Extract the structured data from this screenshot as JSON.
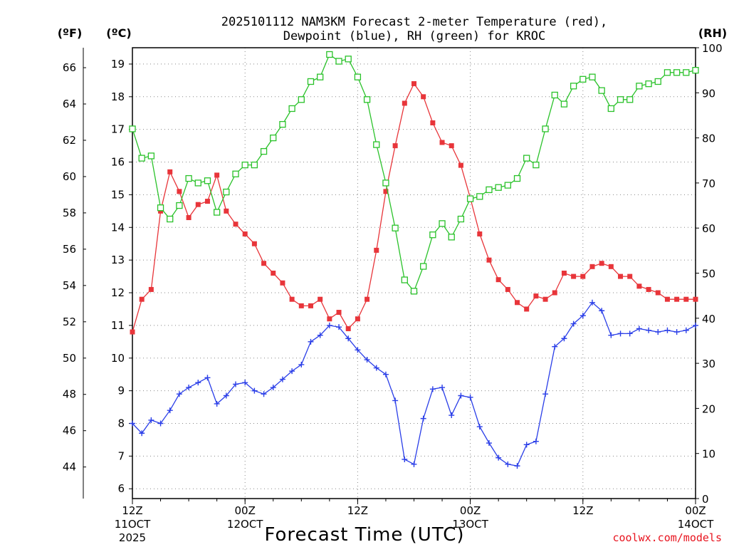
{
  "chart_data": {
    "type": "line",
    "title": "2025101112 NAM3KM Forecast 2-meter Temperature (red),",
    "subtitle": "Dewpoint (blue), RH (green) for KROC",
    "xlabel": "Forecast Time (UTC)",
    "credit": "coolwx.com/models",
    "units": {
      "f": "(ºF)",
      "c": "(ºC)",
      "rh": "(RH)"
    },
    "x_hours": [
      0,
      1,
      2,
      3,
      4,
      5,
      6,
      7,
      8,
      9,
      10,
      11,
      12,
      13,
      14,
      15,
      16,
      17,
      18,
      19,
      20,
      21,
      22,
      23,
      24,
      25,
      26,
      27,
      28,
      29,
      30,
      31,
      32,
      33,
      34,
      35,
      36,
      37,
      38,
      39,
      40,
      41,
      42,
      43,
      44,
      45,
      46,
      47,
      48,
      49,
      50,
      51,
      52,
      53,
      54,
      55,
      56,
      57,
      58,
      59,
      60
    ],
    "xlim": [
      0,
      60
    ],
    "x_ticks": [
      {
        "hour": 0,
        "lines": [
          "12Z",
          "11OCT",
          "2025"
        ]
      },
      {
        "hour": 12,
        "lines": [
          "00Z",
          "12OCT"
        ]
      },
      {
        "hour": 24,
        "lines": [
          "12Z"
        ]
      },
      {
        "hour": 36,
        "lines": [
          "00Z",
          "13OCT"
        ]
      },
      {
        "hour": 48,
        "lines": [
          "12Z"
        ]
      },
      {
        "hour": 60,
        "lines": [
          "00Z",
          "14OCT"
        ]
      }
    ],
    "y_celsius": {
      "lim": [
        5.7,
        19.5
      ],
      "ticks": [
        6,
        7,
        8,
        9,
        10,
        11,
        12,
        13,
        14,
        15,
        16,
        17,
        18,
        19
      ]
    },
    "y_fahrenheit": {
      "ticks": [
        44,
        46,
        48,
        50,
        52,
        54,
        56,
        58,
        60,
        62,
        64,
        66
      ]
    },
    "y_rh": {
      "lim": [
        0,
        100
      ],
      "ticks": [
        0,
        10,
        20,
        30,
        40,
        50,
        60,
        70,
        80,
        90,
        100
      ]
    },
    "series": [
      {
        "name": "Temperature",
        "axis": "celsius",
        "color": "#e8353a",
        "marker": "filled-square",
        "values": [
          10.8,
          11.8,
          12.1,
          14.5,
          15.7,
          15.1,
          14.3,
          14.7,
          14.8,
          15.6,
          14.5,
          14.1,
          13.8,
          13.5,
          12.9,
          12.6,
          12.3,
          11.8,
          11.6,
          11.6,
          11.8,
          11.2,
          11.4,
          10.9,
          11.2,
          11.8,
          13.3,
          15.1,
          16.5,
          17.8,
          18.4,
          18.0,
          17.2,
          16.6,
          16.5,
          15.9,
          14.9,
          13.8,
          13.0,
          12.4,
          12.1,
          11.7,
          11.5,
          11.9,
          11.8,
          12.0,
          12.6,
          12.5,
          12.5,
          12.8,
          12.9,
          12.8,
          12.5,
          12.5,
          12.2,
          12.1,
          12.0,
          11.8,
          11.8,
          11.8,
          11.8
        ]
      },
      {
        "name": "Dewpoint",
        "axis": "celsius",
        "color": "#2a3ee8",
        "marker": "plus",
        "values": [
          8.0,
          7.7,
          8.1,
          8.0,
          8.4,
          8.9,
          9.1,
          9.25,
          9.4,
          8.6,
          8.85,
          9.2,
          9.25,
          9.0,
          8.9,
          9.1,
          9.35,
          9.6,
          9.8,
          10.5,
          10.7,
          11.0,
          10.95,
          10.6,
          10.25,
          9.95,
          9.7,
          9.5,
          8.7,
          6.9,
          6.75,
          8.15,
          9.05,
          9.1,
          8.25,
          8.85,
          8.8,
          7.9,
          7.4,
          6.95,
          6.75,
          6.7,
          7.35,
          7.45,
          8.9,
          10.35,
          10.6,
          11.05,
          11.3,
          11.7,
          11.45,
          10.7,
          10.75,
          10.75,
          10.9,
          10.85,
          10.8,
          10.85,
          10.8,
          10.85,
          11.0
        ]
      },
      {
        "name": "RH",
        "axis": "rh",
        "color": "#2ac22a",
        "marker": "open-square",
        "values": [
          82,
          75.5,
          76,
          64.5,
          62,
          65,
          71,
          70,
          70.5,
          63.5,
          68,
          72,
          74,
          74,
          77,
          80,
          83,
          86.5,
          88.5,
          92.5,
          93.5,
          98.5,
          97,
          97.5,
          93.5,
          88.5,
          78.5,
          70,
          60,
          48.5,
          46,
          51.5,
          58.5,
          61,
          58,
          62,
          66.5,
          67,
          68.5,
          69,
          69.5,
          71,
          75.5,
          74,
          82,
          89.5,
          87.5,
          91.5,
          93,
          93.5,
          90.5,
          86.5,
          88.5,
          88.5,
          91.5,
          92,
          92.5,
          94.5,
          94.5,
          94.5,
          95
        ]
      }
    ]
  }
}
